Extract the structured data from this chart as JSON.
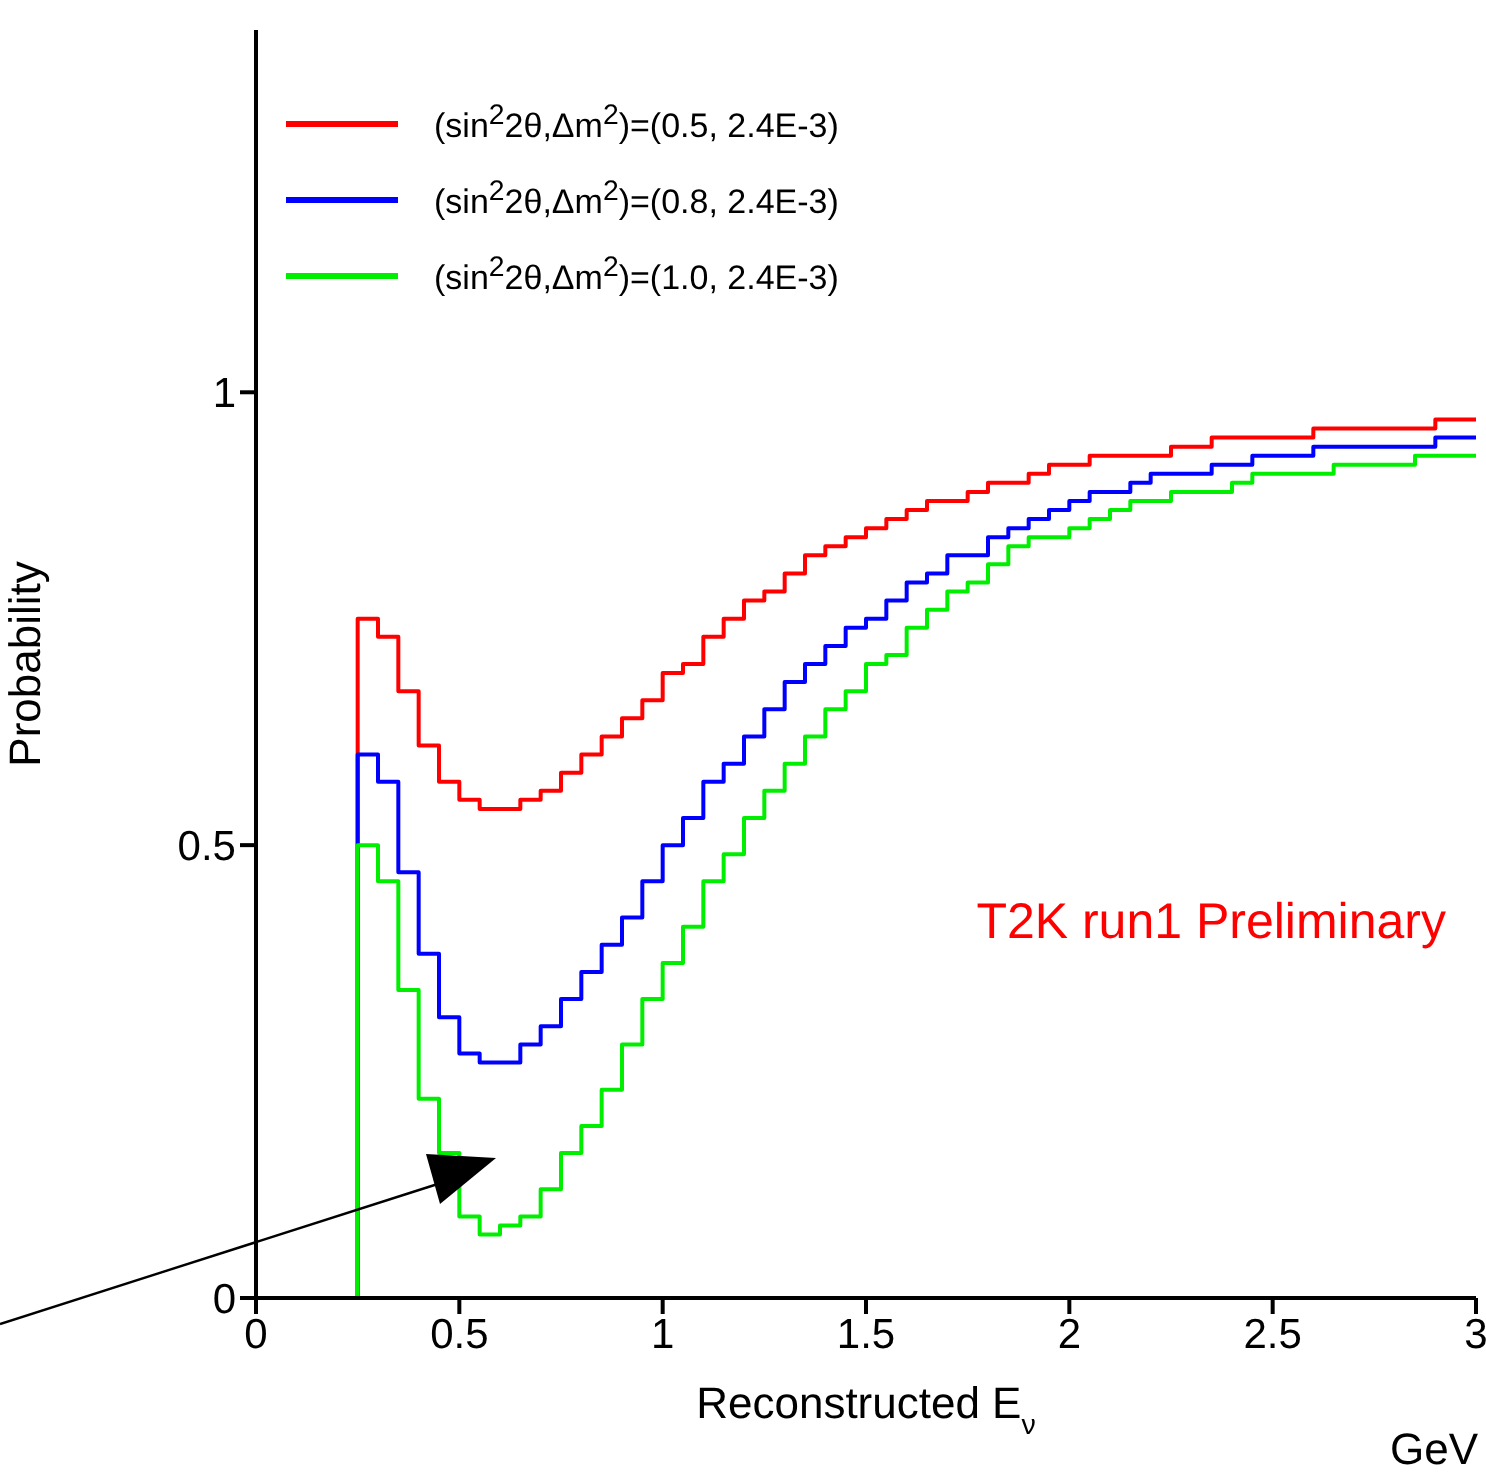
{
  "chart_data": {
    "type": "step",
    "xlabel": "Reconstructed E$_{ν}$",
    "ylabel": "Probability",
    "annotations": [
      "GeV",
      "T2K run1 Preliminary"
    ],
    "x": [
      0,
      0.25,
      0.3,
      0.35,
      0.4,
      0.45,
      0.5,
      0.55,
      0.6,
      0.65,
      0.7,
      0.75,
      0.8,
      0.85,
      0.9,
      0.95,
      1.0,
      1.05,
      1.1,
      1.15,
      1.2,
      1.25,
      1.3,
      1.35,
      1.4,
      1.45,
      1.5,
      1.55,
      1.6,
      1.65,
      1.7,
      1.75,
      1.8,
      1.85,
      1.9,
      1.95,
      2.0,
      2.05,
      2.1,
      2.15,
      2.2,
      2.25,
      2.3,
      2.35,
      2.4,
      2.45,
      2.5,
      2.55,
      2.6,
      2.65,
      2.7,
      2.75,
      2.8,
      2.85,
      2.9,
      2.95,
      3.0
    ],
    "series": [
      {
        "name": "(sin$^{2}$2θ,Δm$^{2}$)=(0.5, 2.4E-3)",
        "color": "#ff0000",
        "values": [
          0,
          0.75,
          0.73,
          0.67,
          0.61,
          0.57,
          0.55,
          0.54,
          0.54,
          0.55,
          0.56,
          0.58,
          0.6,
          0.62,
          0.64,
          0.66,
          0.69,
          0.7,
          0.73,
          0.75,
          0.77,
          0.78,
          0.8,
          0.82,
          0.83,
          0.84,
          0.85,
          0.86,
          0.87,
          0.88,
          0.88,
          0.89,
          0.9,
          0.9,
          0.91,
          0.92,
          0.92,
          0.93,
          0.93,
          0.93,
          0.93,
          0.94,
          0.94,
          0.95,
          0.95,
          0.95,
          0.95,
          0.95,
          0.96,
          0.96,
          0.96,
          0.96,
          0.96,
          0.96,
          0.97,
          0.97,
          0.97
        ]
      },
      {
        "name": "(sin$^{2}$2θ,Δm$^{2}$)=(0.8, 2.4E-3)",
        "color": "#0000ff",
        "values": [
          0,
          0.6,
          0.57,
          0.47,
          0.38,
          0.31,
          0.27,
          0.26,
          0.26,
          0.28,
          0.3,
          0.33,
          0.36,
          0.39,
          0.42,
          0.46,
          0.5,
          0.53,
          0.57,
          0.59,
          0.62,
          0.65,
          0.68,
          0.7,
          0.72,
          0.74,
          0.75,
          0.77,
          0.79,
          0.8,
          0.82,
          0.82,
          0.84,
          0.85,
          0.86,
          0.87,
          0.88,
          0.89,
          0.89,
          0.9,
          0.91,
          0.91,
          0.91,
          0.92,
          0.92,
          0.93,
          0.93,
          0.93,
          0.94,
          0.94,
          0.94,
          0.94,
          0.94,
          0.94,
          0.95,
          0.95,
          0.95
        ]
      },
      {
        "name": "(sin$^{2}$2θ,Δm$^{2}$)=(1.0, 2.4E-3)",
        "color": "#00ee00",
        "values": [
          0,
          0.5,
          0.46,
          0.34,
          0.22,
          0.16,
          0.09,
          0.07,
          0.08,
          0.09,
          0.12,
          0.16,
          0.19,
          0.23,
          0.28,
          0.33,
          0.37,
          0.41,
          0.46,
          0.49,
          0.53,
          0.56,
          0.59,
          0.62,
          0.65,
          0.67,
          0.7,
          0.71,
          0.74,
          0.76,
          0.78,
          0.79,
          0.81,
          0.83,
          0.84,
          0.84,
          0.85,
          0.86,
          0.87,
          0.88,
          0.88,
          0.89,
          0.89,
          0.89,
          0.9,
          0.91,
          0.91,
          0.91,
          0.91,
          0.92,
          0.92,
          0.92,
          0.92,
          0.93,
          0.93,
          0.93,
          0.93
        ]
      }
    ],
    "xlim": [
      0,
      3
    ],
    "xticks": [
      0,
      0.5,
      1,
      1.5,
      2,
      2.5,
      3
    ],
    "ylim": [
      0,
      1.4
    ],
    "yticks": [
      0,
      0.5,
      1
    ],
    "legend": "top left",
    "grid": false
  }
}
